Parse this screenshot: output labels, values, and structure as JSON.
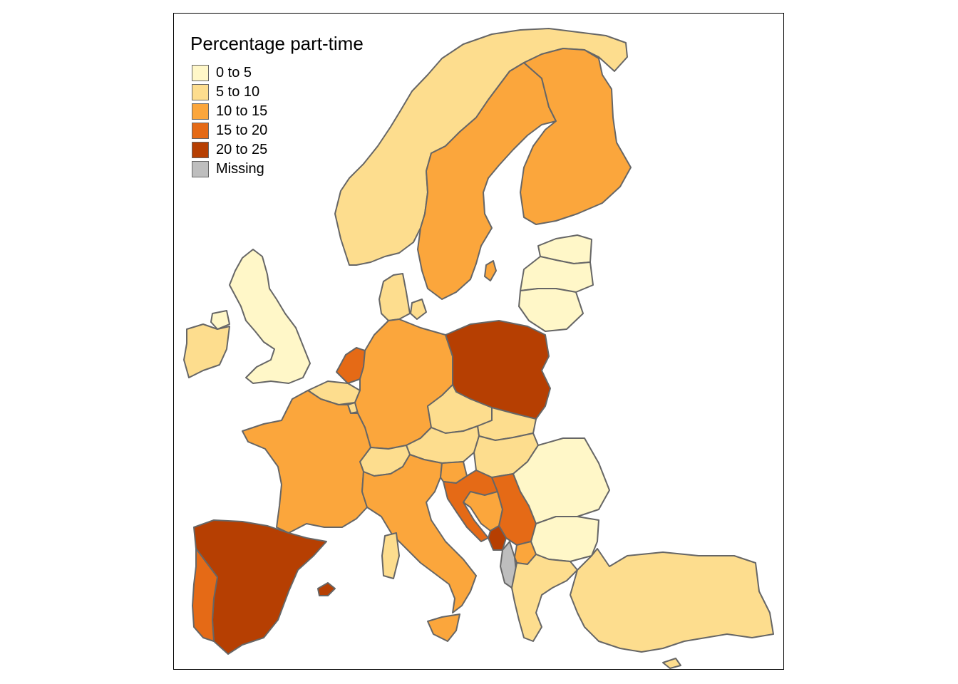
{
  "legend": {
    "title": "Percentage part-time",
    "items": [
      {
        "label": "0 to 5",
        "color": "#fff7c8"
      },
      {
        "label": "5 to 10",
        "color": "#fddd8e"
      },
      {
        "label": "10 to 15",
        "color": "#fba63c"
      },
      {
        "label": "15 to 20",
        "color": "#e56a16"
      },
      {
        "label": "20 to 25",
        "color": "#b63f02"
      },
      {
        "label": "Missing",
        "color": "#bebebe"
      }
    ]
  },
  "regions": [
    {
      "name": "Norway",
      "class": "5 to 10"
    },
    {
      "name": "Sweden",
      "class": "10 to 15"
    },
    {
      "name": "Finland",
      "class": "10 to 15"
    },
    {
      "name": "Estonia",
      "class": "0 to 5"
    },
    {
      "name": "Latvia",
      "class": "0 to 5"
    },
    {
      "name": "Lithuania",
      "class": "0 to 5"
    },
    {
      "name": "Denmark",
      "class": "5 to 10"
    },
    {
      "name": "United Kingdom",
      "class": "0 to 5"
    },
    {
      "name": "Ireland",
      "class": "5 to 10"
    },
    {
      "name": "Netherlands",
      "class": "15 to 20"
    },
    {
      "name": "Belgium",
      "class": "5 to 10"
    },
    {
      "name": "Luxembourg",
      "class": "5 to 10"
    },
    {
      "name": "Germany",
      "class": "10 to 15"
    },
    {
      "name": "Poland",
      "class": "20 to 25"
    },
    {
      "name": "Czechia",
      "class": "5 to 10"
    },
    {
      "name": "Slovakia",
      "class": "5 to 10"
    },
    {
      "name": "Austria",
      "class": "5 to 10"
    },
    {
      "name": "Switzerland",
      "class": "5 to 10"
    },
    {
      "name": "Hungary",
      "class": "5 to 10"
    },
    {
      "name": "France",
      "class": "10 to 15"
    },
    {
      "name": "Spain",
      "class": "20 to 25"
    },
    {
      "name": "Portugal",
      "class": "15 to 20"
    },
    {
      "name": "Italy",
      "class": "10 to 15"
    },
    {
      "name": "Slovenia",
      "class": "10 to 15"
    },
    {
      "name": "Croatia",
      "class": "15 to 20"
    },
    {
      "name": "Bosnia and Herzegovina",
      "class": "10 to 15"
    },
    {
      "name": "Serbia",
      "class": "15 to 20"
    },
    {
      "name": "Montenegro",
      "class": "20 to 25"
    },
    {
      "name": "Albania",
      "class": "Missing"
    },
    {
      "name": "North Macedonia",
      "class": "10 to 15"
    },
    {
      "name": "Romania",
      "class": "0 to 5"
    },
    {
      "name": "Bulgaria",
      "class": "0 to 5"
    },
    {
      "name": "Greece",
      "class": "5 to 10"
    },
    {
      "name": "Turkey",
      "class": "5 to 10"
    },
    {
      "name": "Cyprus",
      "class": "5 to 10"
    },
    {
      "name": "Sardinia",
      "class": "5 to 10"
    },
    {
      "name": "Corsica",
      "class": "10 to 15"
    },
    {
      "name": "Sicily",
      "class": "10 to 15"
    },
    {
      "name": "Balearic Islands",
      "class": "20 to 25"
    },
    {
      "name": "Gotland",
      "class": "10 to 15"
    }
  ]
}
